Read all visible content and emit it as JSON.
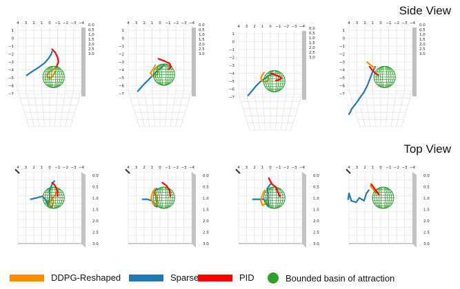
{
  "titles": {
    "side": "Side View",
    "top": "Top View"
  },
  "legend": [
    {
      "label": "DDPG-Reshaped",
      "color": "#ff8c00",
      "kind": "swatch"
    },
    {
      "label": "Sparse",
      "color": "#1f77b4",
      "kind": "swatch"
    },
    {
      "label": "PID",
      "color": "#ff0000",
      "kind": "swatch"
    },
    {
      "label": "Bounded basin of attraction",
      "color": "#2ca02c",
      "kind": "dot"
    }
  ],
  "chart_data": {
    "type": "line",
    "title": "",
    "panel_count": 8,
    "axes": {
      "top_axis_ticks": [
        "4",
        "3",
        "2",
        "1",
        "0",
        "−1",
        "−2",
        "−3",
        "−4"
      ],
      "z_ticks": [
        "0.0",
        "0.5",
        "1.0",
        "1.5",
        "2.0",
        "2.5",
        "3.0"
      ],
      "side_left_ticks": [
        "1",
        "0",
        "−1",
        "−2",
        "−3",
        "−4",
        "−5",
        "−6",
        "−7"
      ]
    },
    "colors": {
      "ddpg": "#ff8c00",
      "sparse": "#1f77b4",
      "pid": "#ff0000",
      "basin": "#2ca02c"
    },
    "series": [
      {
        "name": "DDPG-Reshaped",
        "trajectories": [
          [
            [
              -1.0,
              -3.6
            ],
            [
              -0.6,
              -3.9
            ],
            [
              0.0,
              -4.2
            ],
            [
              0.3,
              -4.6
            ],
            [
              0.3,
              -4.9
            ],
            [
              0.0,
              -5.1
            ],
            [
              -0.4,
              -4.8
            ],
            [
              -0.7,
              -4.2
            ]
          ],
          [
            [
              0.6,
              -3.4
            ],
            [
              0.8,
              -3.8
            ],
            [
              1.0,
              -4.1
            ],
            [
              1.2,
              -4.4
            ],
            [
              1.0,
              -4.7
            ],
            [
              0.6,
              -4.8
            ],
            [
              0.3,
              -4.5
            ],
            [
              0.2,
              -4.0
            ],
            [
              0.4,
              -3.7
            ]
          ],
          [
            [
              0.8,
              -3.9
            ],
            [
              1.0,
              -4.2
            ],
            [
              1.2,
              -4.6
            ],
            [
              1.0,
              -5.0
            ],
            [
              0.6,
              -5.1
            ],
            [
              0.2,
              -4.8
            ],
            [
              0.3,
              -4.4
            ]
          ],
          [
            [
              1.7,
              -3.0
            ],
            [
              1.4,
              -3.3
            ],
            [
              1.0,
              -3.6
            ],
            [
              0.7,
              -3.8
            ]
          ],
          [
            [
              -1.0,
              1.2
            ],
            [
              -0.6,
              1.6
            ],
            [
              -0.1,
              1.9
            ],
            [
              0.1,
              2.2
            ],
            [
              -0.3,
              2.3
            ],
            [
              -0.5,
              2.0
            ],
            [
              -0.3,
              1.6
            ]
          ],
          [
            [
              0.6,
              1.1
            ],
            [
              0.9,
              1.3
            ],
            [
              1.1,
              1.7
            ],
            [
              0.9,
              2.1
            ],
            [
              0.5,
              2.2
            ],
            [
              0.3,
              1.9
            ],
            [
              0.5,
              1.5
            ],
            [
              0.7,
              1.3
            ]
          ],
          [
            [
              0.7,
              1.2
            ],
            [
              1.0,
              1.5
            ],
            [
              1.2,
              1.9
            ],
            [
              1.0,
              2.2
            ],
            [
              0.6,
              2.1
            ],
            [
              0.5,
              1.8
            ]
          ],
          [
            [
              1.3,
              0.9
            ],
            [
              1.0,
              1.1
            ],
            [
              0.6,
              1.4
            ]
          ]
        ]
      },
      {
        "name": "Sparse",
        "trajectories": [
          [
            [
              2.9,
              -4.7
            ],
            [
              2.2,
              -4.2
            ],
            [
              1.4,
              -3.7
            ],
            [
              0.6,
              -3.1
            ],
            [
              0.1,
              -2.5
            ],
            [
              -0.2,
              -2.0
            ],
            [
              -0.3,
              -1.7
            ]
          ],
          [
            [
              2.8,
              -6.7
            ],
            [
              2.0,
              -5.8
            ],
            [
              1.2,
              -5.0
            ],
            [
              0.6,
              -4.4
            ],
            [
              0.2,
              -4.0
            ],
            [
              -0.2,
              -3.7
            ],
            [
              -0.5,
              -3.4
            ]
          ],
          [
            [
              2.8,
              -6.8
            ],
            [
              2.3,
              -6.2
            ],
            [
              1.8,
              -5.6
            ],
            [
              1.3,
              -5.1
            ],
            [
              0.9,
              -4.8
            ],
            [
              0.6,
              -4.6
            ],
            [
              0.2,
              -4.3
            ],
            [
              -0.2,
              -4.1
            ]
          ],
          [
            [
              4.0,
              -9.6
            ],
            [
              3.8,
              -9.3
            ],
            [
              3.7,
              -9.0
            ],
            [
              3.4,
              -8.6
            ],
            [
              3.0,
              -8.1
            ],
            [
              2.6,
              -7.5
            ],
            [
              2.1,
              -6.8
            ],
            [
              1.7,
              -6.0
            ],
            [
              1.3,
              -5.0
            ],
            [
              1.0,
              -4.2
            ],
            [
              0.7,
              -3.6
            ]
          ],
          [
            [
              2.4,
              1.8
            ],
            [
              1.6,
              1.7
            ],
            [
              0.9,
              1.6
            ],
            [
              0.4,
              1.9
            ],
            [
              0.2,
              2.2
            ],
            [
              0.0,
              1.7
            ],
            [
              0.0,
              1.2
            ],
            [
              -0.3,
              0.8
            ],
            [
              -0.6,
              0.6
            ]
          ],
          [
            [
              2.2,
              1.8
            ],
            [
              1.6,
              1.8
            ],
            [
              1.0,
              1.9
            ],
            [
              0.7,
              2.2
            ],
            [
              0.4,
              2.3
            ],
            [
              0.4,
              1.8
            ],
            [
              0.6,
              1.5
            ],
            [
              0.8,
              1.3
            ],
            [
              0.4,
              1.1
            ]
          ],
          [
            [
              2.2,
              1.8
            ],
            [
              1.5,
              1.8
            ],
            [
              0.8,
              1.8
            ],
            [
              0.4,
              2.2
            ],
            [
              0.2,
              2.3
            ],
            [
              0.3,
              1.9
            ],
            [
              0.3,
              1.4
            ],
            [
              0.4,
              1.1
            ],
            [
              0.0,
              0.8
            ]
          ],
          [
            [
              4.1,
              1.8
            ],
            [
              4.0,
              1.4
            ],
            [
              3.7,
              1.9
            ],
            [
              3.1,
              2.0
            ],
            [
              2.7,
              1.7
            ],
            [
              2.1,
              1.9
            ],
            [
              1.8,
              1.4
            ],
            [
              1.5,
              1.2
            ]
          ]
        ]
      },
      {
        "name": "PID",
        "trajectories": [
          [
            [
              -0.3,
              -1.4
            ],
            [
              -0.7,
              -1.8
            ],
            [
              -1.0,
              -2.4
            ],
            [
              -1.1,
              -3.0
            ],
            [
              -0.9,
              -3.5
            ]
          ],
          [
            [
              0.2,
              -2.6
            ],
            [
              -0.6,
              -2.9
            ],
            [
              -1.2,
              -3.2
            ],
            [
              -1.4,
              -3.6
            ],
            [
              -1.1,
              -3.9
            ]
          ],
          [
            [
              -0.1,
              -4.0
            ],
            [
              -0.6,
              -4.2
            ],
            [
              -1.1,
              -4.4
            ],
            [
              -1.4,
              -4.6
            ],
            [
              -1.2,
              -4.8
            ],
            [
              -0.7,
              -4.9
            ]
          ],
          [
            [
              1.4,
              -3.6
            ],
            [
              1.1,
              -4.0
            ],
            [
              0.7,
              -4.4
            ],
            [
              0.3,
              -4.7
            ]
          ],
          [
            [
              -0.3,
              0.7
            ],
            [
              -0.7,
              0.9
            ],
            [
              -1.0,
              1.3
            ],
            [
              -1.0,
              1.6
            ]
          ],
          [
            [
              -0.3,
              0.7
            ],
            [
              -0.8,
              0.9
            ],
            [
              -1.2,
              1.2
            ],
            [
              -1.3,
              1.6
            ]
          ],
          [
            [
              0.2,
              0.4
            ],
            [
              -0.2,
              0.8
            ],
            [
              -0.7,
              1.0
            ],
            [
              -1.0,
              1.4
            ],
            [
              -1.2,
              1.6
            ]
          ],
          [
            [
              1.2,
              0.8
            ],
            [
              0.9,
              1.0
            ],
            [
              0.5,
              1.3
            ],
            [
              0.2,
              1.5
            ]
          ]
        ]
      }
    ],
    "basin": {
      "label": "Bounded basin of attraction",
      "side_centers": [
        [
          -0.5,
          -4.9
        ],
        [
          -0.5,
          -4.6
        ],
        [
          -0.5,
          -5.0
        ],
        [
          -0.5,
          -4.9
        ]
      ],
      "top_centers": [
        [
          -0.5,
          1.7
        ],
        [
          -0.5,
          1.7
        ],
        [
          -0.5,
          1.7
        ],
        [
          -0.3,
          1.7
        ]
      ]
    }
  }
}
